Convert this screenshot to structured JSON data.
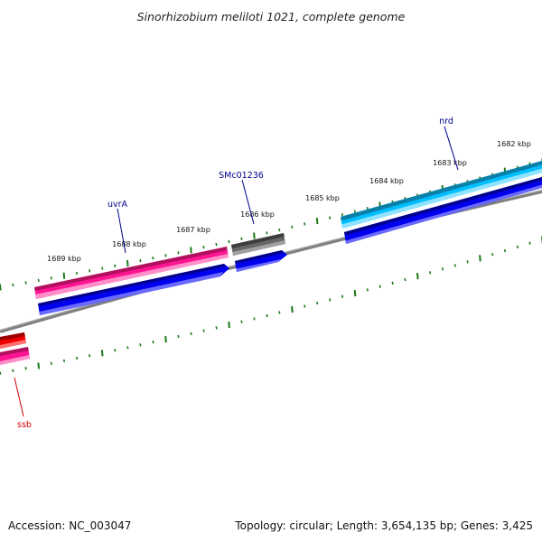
{
  "title": "Sinorhizobium meliloti 1021, complete genome",
  "accession": "Accession: NC_003047",
  "summary": "Topology: circular; Length: 3,654,135 bp; Genes: 3,425",
  "colors": {
    "tick": "#1a7a1a",
    "backbone": "#808080",
    "cds": "#0000ee",
    "gene_magenta": "#ff1493",
    "gene_gray": "#666666",
    "gene_cyan": "#00bfff",
    "gene_red": "#ee0000",
    "label_blue": "#00008b",
    "label_red": "#cc0000"
  },
  "scale_labels": [
    "1682 kbp",
    "1683 kbp",
    "1684 kbp",
    "1685 kbp",
    "1686 kbp",
    "1687 kbp",
    "1688 kbp",
    "1689 kbp"
  ],
  "gene_labels": [
    {
      "name": "nrd",
      "color": "#00008b"
    },
    {
      "name": "SMc01236",
      "color": "#00008b"
    },
    {
      "name": "uvrA",
      "color": "#00008b"
    },
    {
      "name": "ssb",
      "color": "#cc0000"
    }
  ]
}
